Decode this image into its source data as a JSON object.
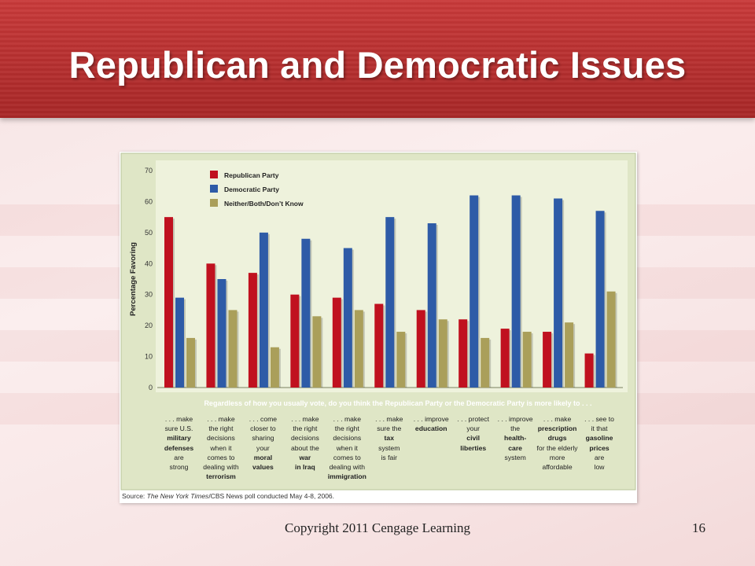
{
  "slide": {
    "title": "Republican and Democratic Issues",
    "copyright": "Copyright 2011 Cengage Learning",
    "page_number": "16"
  },
  "chart_data": {
    "type": "bar",
    "ylabel": "Percentage Favoring",
    "ylim": [
      0,
      70
    ],
    "yticks": [
      0,
      10,
      20,
      30,
      40,
      50,
      60,
      70
    ],
    "question": "Regardless of how you usually vote, do you think the Republican Party or the Democratic Party is more likely to . . .",
    "source_prefix": "Source: ",
    "source_italic": "The New York Times",
    "source_rest": "/CBS News poll conducted May 4-8, 2006.",
    "legend_placement": "top-left",
    "grid": false,
    "categories": [
      ". . . make sure U.S. military defenses are strong",
      ". . . make the right decisions when it comes to dealing with terrorism",
      ". . . come closer to sharing your moral values",
      ". . . make the right decisions about the war in Iraq",
      ". . . make the right decisions when it comes to dealing with immigration",
      ". . . make sure the tax system is fair",
      ". . . improve education",
      ". . . protect your civil liberties",
      ". . . improve the health-care system",
      ". . . make prescription drugs for the elderly more affordable",
      ". . . see to it that gasoline prices are low"
    ],
    "category_lines": [
      [
        ". . . make",
        "sure U.S.",
        "**military**",
        "**defenses**",
        "are",
        "strong"
      ],
      [
        ". . . make",
        "the right",
        "decisions",
        "when it",
        "comes to",
        "dealing with",
        "**terrorism**"
      ],
      [
        ". . . come",
        "closer to",
        "sharing",
        "your",
        "**moral**",
        "**values**"
      ],
      [
        ". . . make",
        "the right",
        "decisions",
        "about the",
        "**war**",
        "**in Iraq**"
      ],
      [
        ". . . make",
        "the right",
        "decisions",
        "when it",
        "comes to",
        "dealing with",
        "**immigration**"
      ],
      [
        ". . . make",
        "sure the",
        "**tax**",
        "system",
        "is fair"
      ],
      [
        ". . . improve",
        "**education**"
      ],
      [
        ". . . protect",
        "your",
        "**civil**",
        "**liberties**"
      ],
      [
        ". . . improve",
        "the",
        "**health-**",
        "**care**",
        "system"
      ],
      [
        ". . . make",
        "**prescription**",
        "**drugs**",
        "for the elderly",
        "more",
        "affordable"
      ],
      [
        ". . . see to",
        "it that",
        "**gasoline**",
        "**prices**",
        "are",
        "low"
      ]
    ],
    "series": [
      {
        "name": "Republican Party",
        "color": "#c0111f",
        "values": [
          55,
          40,
          37,
          30,
          29,
          27,
          25,
          22,
          19,
          18,
          11
        ]
      },
      {
        "name": "Democratic Party",
        "color": "#2e5ba7",
        "values": [
          29,
          35,
          50,
          48,
          45,
          55,
          53,
          62,
          62,
          61,
          57
        ]
      },
      {
        "name": "Neither/Both/Don’t Know",
        "color": "#aa9f5a",
        "values": [
          16,
          25,
          13,
          23,
          25,
          18,
          22,
          16,
          18,
          21,
          31
        ]
      }
    ]
  }
}
